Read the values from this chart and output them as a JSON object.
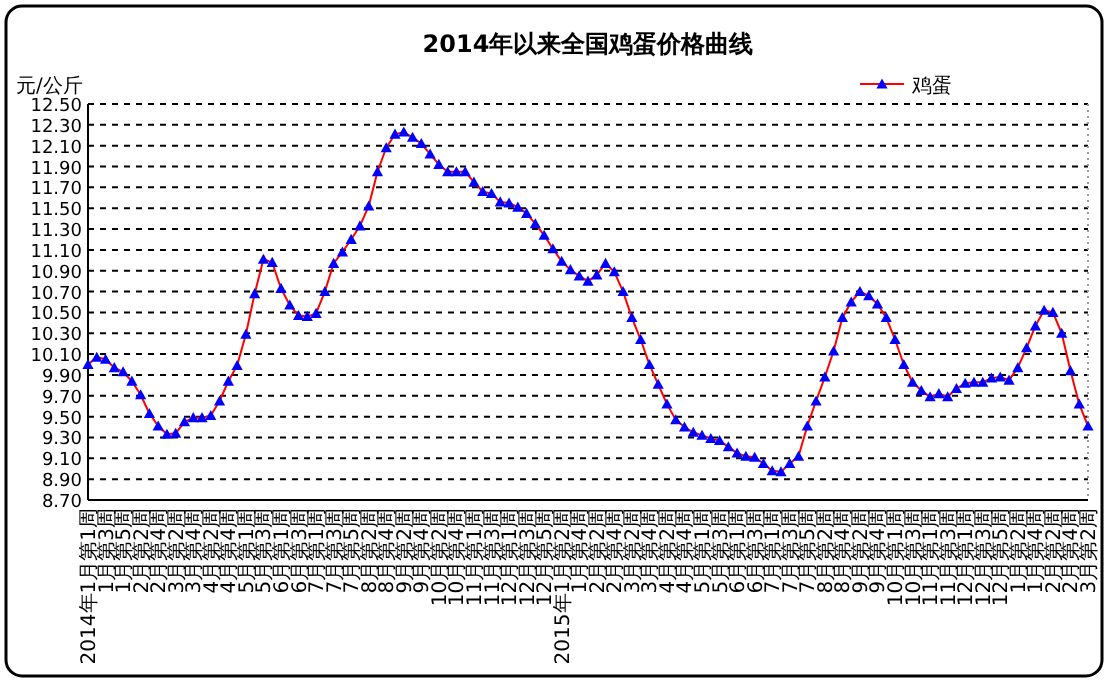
{
  "chart_data": {
    "type": "line",
    "title": "2014年以来全国鸡蛋价格曲线",
    "ylabel": "元/公斤",
    "legend": "top right",
    "grid": "y",
    "marker": "triangle",
    "line_style": "solid",
    "ylim": [
      8.7,
      12.5
    ],
    "yticks": [
      {
        "value": 8.7,
        "label": "8.70"
      },
      {
        "value": 8.9,
        "label": "8.90"
      },
      {
        "value": 9.1,
        "label": "9.10"
      },
      {
        "value": 9.3,
        "label": "9.30"
      },
      {
        "value": 9.5,
        "label": "9.50"
      },
      {
        "value": 9.7,
        "label": "9.70"
      },
      {
        "value": 9.9,
        "label": "9.90"
      },
      {
        "value": 10.1,
        "label": "10.10"
      },
      {
        "value": 10.3,
        "label": "10.30"
      },
      {
        "value": 10.5,
        "label": "10.50"
      },
      {
        "value": 10.7,
        "label": "10.70"
      },
      {
        "value": 10.9,
        "label": "10.90"
      },
      {
        "value": 11.1,
        "label": "11.10"
      },
      {
        "value": 11.3,
        "label": "11.30"
      },
      {
        "value": 11.5,
        "label": "11.50"
      },
      {
        "value": 11.7,
        "label": "11.70"
      },
      {
        "value": 11.9,
        "label": "11.90"
      },
      {
        "value": 12.1,
        "label": "12.10"
      },
      {
        "value": 12.3,
        "label": "12.30"
      },
      {
        "value": 12.5,
        "label": "12.50"
      }
    ],
    "categories": [
      "2014年1月第1周",
      null,
      "1月第3周",
      null,
      "1月第5周",
      null,
      "2月第2周",
      null,
      "2月第4周",
      null,
      "3月第2周",
      null,
      "3月第4周",
      null,
      "4月第2周",
      null,
      "4月第4周",
      null,
      "5月第1周",
      null,
      "5月第3周",
      null,
      "6月第1周",
      null,
      "6月第3周",
      null,
      "7月第1周",
      null,
      "7月第3周",
      null,
      "7月第5周",
      null,
      "8月第2周",
      null,
      "8月第4周",
      null,
      "9月第2周",
      null,
      "9月第4周",
      null,
      "10月第2周",
      null,
      "10月第4周",
      null,
      "11月第1周",
      null,
      "11月第3周",
      null,
      "12月第1周",
      null,
      "12月第3周",
      null,
      "12月第5周",
      null,
      "2015年1月第2周",
      null,
      "1月第4周",
      null,
      "2月第2周",
      null,
      "2月第4周",
      null,
      "3月第2周",
      null,
      "3月第4周",
      null,
      "4月第2周",
      null,
      "4月第4周",
      null,
      "5月第1周",
      null,
      "5月第3周",
      null,
      "6月第1周",
      null,
      "6月第3周",
      null,
      "7月第1周",
      null,
      "7月第3周",
      null,
      "7月第5周",
      null,
      "8月第2周",
      null,
      "8月第4周",
      null,
      "9月第2周",
      null,
      "9月第4周",
      null,
      "10月第1周",
      null,
      "10月第3周",
      null,
      "11月第1周",
      null,
      "11月第3周",
      null,
      "12月第1周",
      null,
      "12月第3周",
      null,
      "12月第5周",
      null,
      "1月第2周",
      null,
      "1月第4周",
      null,
      "2月第2周",
      null,
      "2月第4周",
      null,
      "3月第2周"
    ],
    "series": [
      {
        "name": "鸡蛋",
        "color": "#0000ff",
        "values": [
          10.0,
          10.07,
          10.05,
          9.97,
          9.93,
          9.84,
          9.71,
          9.53,
          9.41,
          9.33,
          9.34,
          9.45,
          9.49,
          9.49,
          9.51,
          9.65,
          9.84,
          9.99,
          10.29,
          10.68,
          11.01,
          10.98,
          10.73,
          10.57,
          10.47,
          10.46,
          10.49,
          10.7,
          10.97,
          11.08,
          11.2,
          11.33,
          11.52,
          11.85,
          12.08,
          12.21,
          12.23,
          12.18,
          12.12,
          12.02,
          11.92,
          11.85,
          11.85,
          11.85,
          11.75,
          11.66,
          11.64,
          11.56,
          11.55,
          11.51,
          11.45,
          11.35,
          11.24,
          11.11,
          10.99,
          10.91,
          10.85,
          10.8,
          10.86,
          10.97,
          10.89,
          10.7,
          10.45,
          10.24,
          10.0,
          9.81,
          9.62,
          9.47,
          9.4,
          9.35,
          9.32,
          9.29,
          9.27,
          9.21,
          9.15,
          9.12,
          9.11,
          9.05,
          8.98,
          8.97,
          9.05,
          9.12,
          9.41,
          9.65,
          9.88,
          10.13,
          10.45,
          10.6,
          10.7,
          10.66,
          10.58,
          10.45,
          10.24,
          10.0,
          9.83,
          9.75,
          9.69,
          9.72,
          9.69,
          9.77,
          9.82,
          9.83,
          9.83,
          9.87,
          9.88,
          9.85,
          9.97,
          10.16,
          10.37,
          10.52,
          10.5,
          10.3,
          9.94,
          9.62,
          9.41
        ]
      }
    ]
  }
}
